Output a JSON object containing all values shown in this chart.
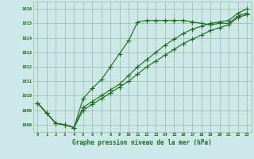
{
  "title": "Graphe pression niveau de la mer (hPa)",
  "xlabel_hours": [
    0,
    1,
    2,
    3,
    4,
    5,
    6,
    7,
    8,
    9,
    10,
    11,
    12,
    13,
    14,
    15,
    16,
    17,
    18,
    19,
    20,
    21,
    22,
    23
  ],
  "ylim": [
    1007.5,
    1016.5
  ],
  "yticks": [
    1008,
    1009,
    1010,
    1011,
    1012,
    1013,
    1014,
    1015,
    1016
  ],
  "line1": [
    1009.5,
    1008.8,
    1008.1,
    1008.0,
    1007.8,
    1009.8,
    1010.5,
    1011.1,
    1012.0,
    1012.9,
    1013.8,
    1015.1,
    1015.2,
    1015.2,
    1015.2,
    1015.2,
    1015.2,
    1015.1,
    1015.0,
    1014.9,
    1015.0,
    1015.0,
    1015.5,
    1015.7
  ],
  "line2": [
    1009.5,
    1008.8,
    1008.1,
    1008.0,
    1007.8,
    1009.2,
    1009.6,
    1010.0,
    1010.4,
    1010.8,
    1011.4,
    1012.0,
    1012.5,
    1013.0,
    1013.5,
    1013.9,
    1014.3,
    1014.6,
    1014.8,
    1015.0,
    1015.1,
    1015.2,
    1015.7,
    1016.0
  ],
  "line3": [
    1009.5,
    1008.8,
    1008.1,
    1008.0,
    1007.8,
    1009.0,
    1009.4,
    1009.8,
    1010.2,
    1010.6,
    1011.0,
    1011.5,
    1012.0,
    1012.4,
    1012.8,
    1013.2,
    1013.6,
    1013.9,
    1014.2,
    1014.5,
    1014.7,
    1014.9,
    1015.4,
    1015.6
  ],
  "bg_color": "#cce8e8",
  "line_color": "#1a6b1a",
  "grid_color": "#99bb99",
  "title_color": "#1a6b1a",
  "marker": "+",
  "markersize": 4.0,
  "linewidth": 0.8
}
